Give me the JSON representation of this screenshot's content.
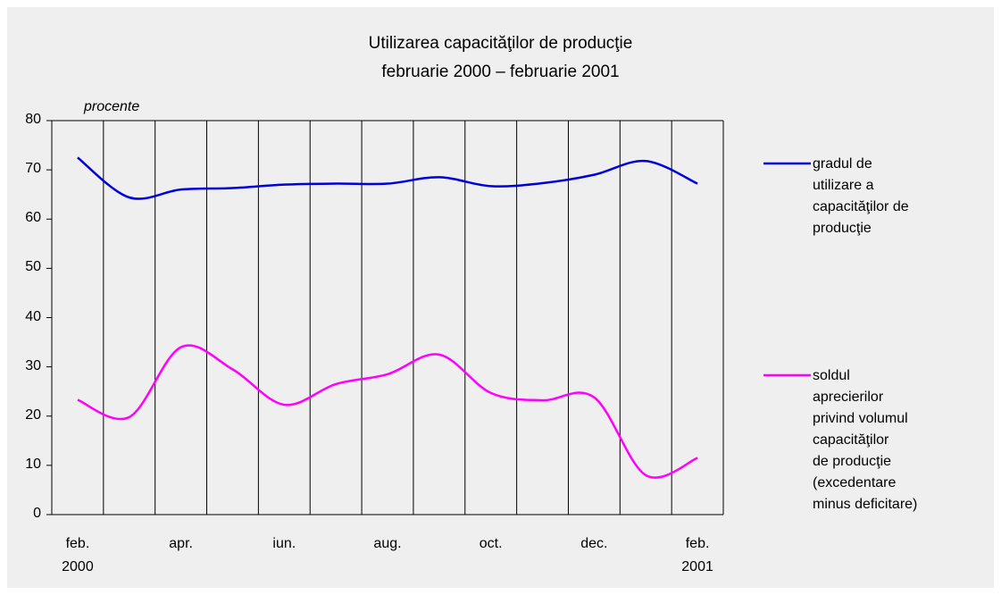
{
  "chart_data": {
    "type": "line",
    "title": "Utilizarea capacităţilor de producţie",
    "subtitle": "februarie 2000 – februarie 2001",
    "y_label": "procente",
    "categories": [
      "feb.\n2000",
      null,
      "apr.",
      null,
      "iun.",
      null,
      "aug.",
      null,
      "oct.",
      null,
      "dec.",
      null,
      "feb.\n2001"
    ],
    "series": [
      {
        "name": "gradul de\nutilizare a\ncapacităţilor de\nproducţie",
        "color": "#0000dd",
        "values": [
          72.5,
          64.4,
          66,
          66.3,
          67,
          67.2,
          67.2,
          68.5,
          66.7,
          67.3,
          69,
          71.8,
          67.2
        ]
      },
      {
        "name": "soldul\naprecierilor\nprivind volumul\ncapacităţilor\nde producţie\n(excedentare\nminus deficitare)",
        "color": "#ff00ff",
        "values": [
          23.3,
          19.8,
          34,
          29.5,
          22.3,
          26.5,
          28.5,
          32.5,
          24.7,
          23.2,
          23.8,
          8,
          11.5
        ]
      }
    ],
    "ylim": [
      0,
      80
    ],
    "yticks": [
      0,
      10,
      20,
      30,
      40,
      50,
      60,
      70,
      80
    ]
  }
}
